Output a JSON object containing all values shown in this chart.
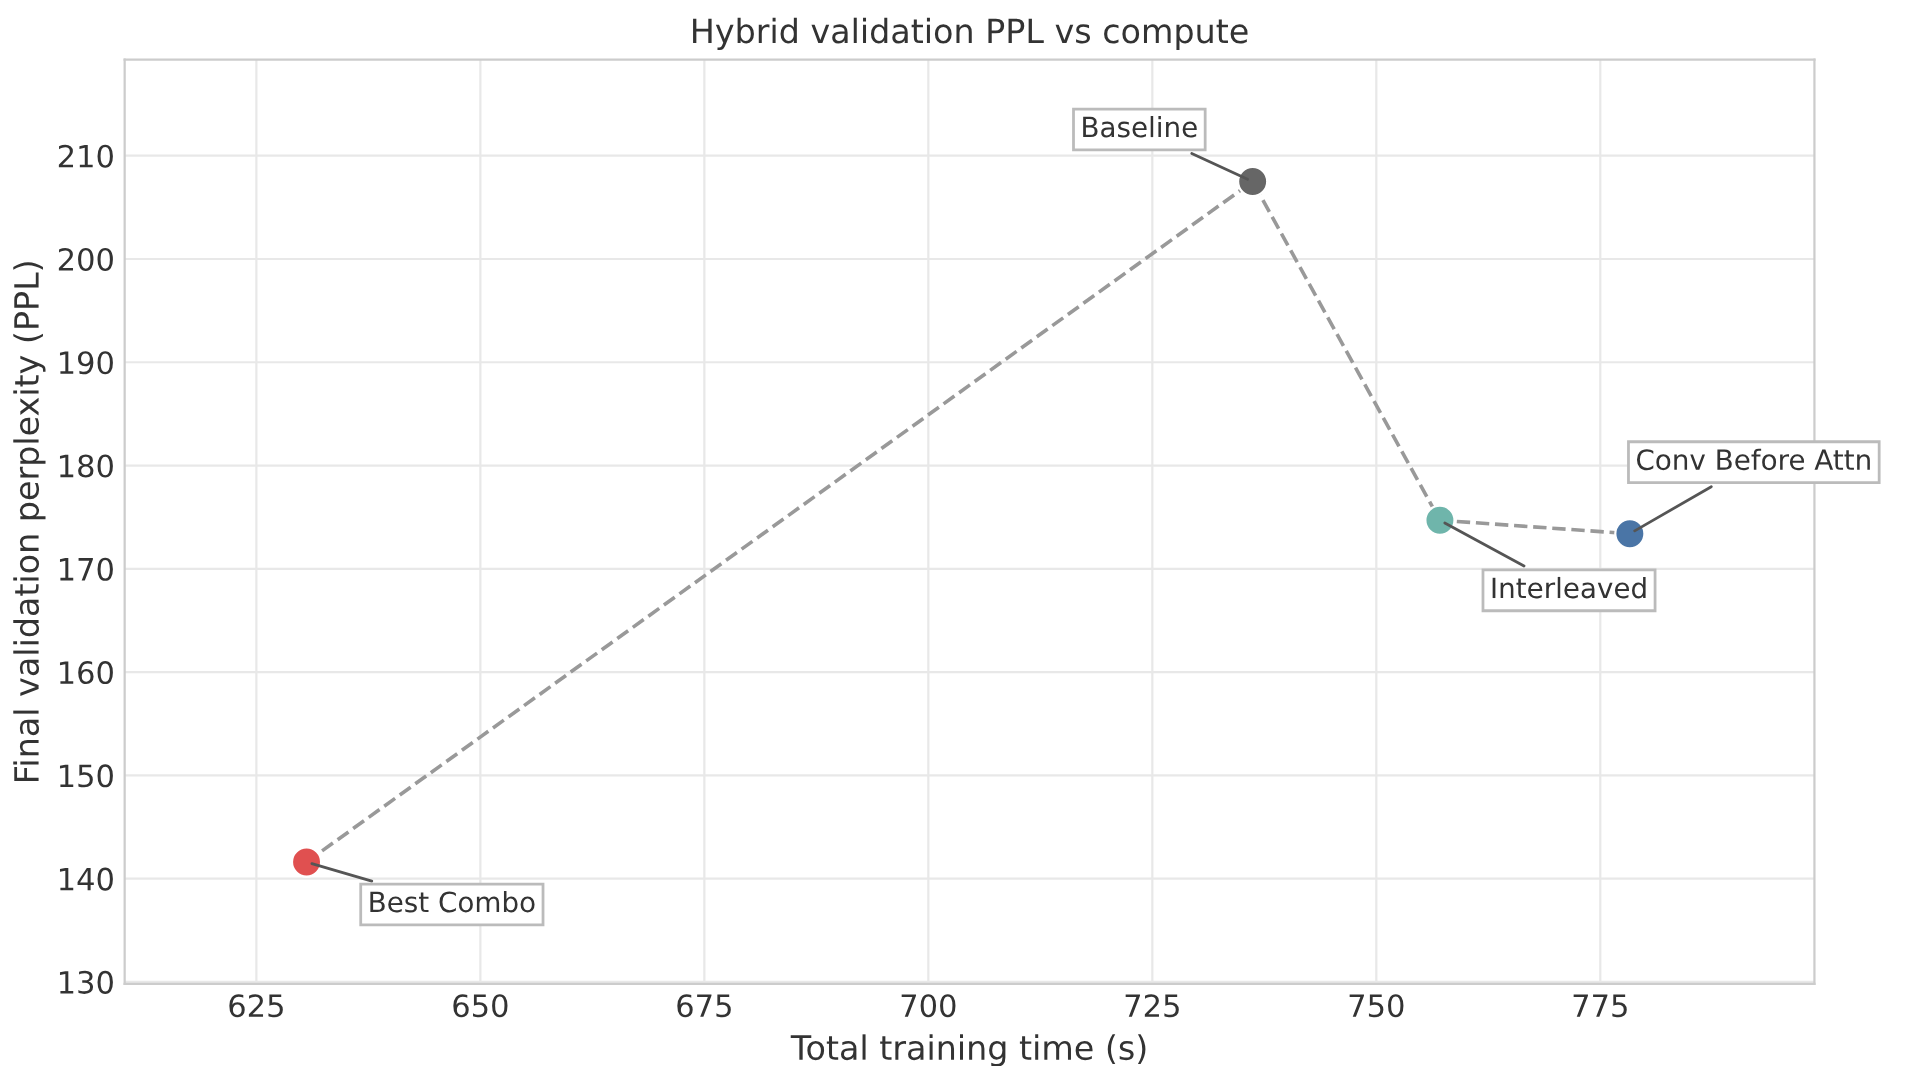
{
  "chart_data": {
    "type": "scatter",
    "title": "Hybrid validation PPL vs compute",
    "xlabel": "Total training time (s)",
    "ylabel": "Final validation perplexity (PPL)",
    "series": [
      {
        "type": "line",
        "color": "#999999",
        "line_style": "dashed",
        "marker": "none",
        "x": [
          630.6,
          736.2,
          757.1,
          778.3
        ],
        "values": [
          141.6,
          207.5,
          174.7,
          173.4
        ]
      },
      {
        "type": "scatter",
        "marker": "circle",
        "x": [
          630.6,
          736.2,
          757.1,
          778.3
        ],
        "values": [
          141.6,
          207.5,
          174.7,
          173.4
        ],
        "colors": [
          "#e05050",
          "#666666",
          "#6fb5ab",
          "#4a75a6"
        ]
      }
    ],
    "annotations": [
      {
        "text": "Best Combo",
        "x": 630.6,
        "y": 141.6
      },
      {
        "text": "Baseline",
        "x": 736.2,
        "y": 207.5
      },
      {
        "text": "Interleaved",
        "x": 757.1,
        "y": 174.7
      },
      {
        "text": "Conv Before Attn",
        "x": 778.3,
        "y": 173.4
      }
    ],
    "xlim": [
      610.3,
      798.9
    ],
    "ylim": [
      129.8,
      219.3
    ],
    "xticks": [
      625,
      650,
      675,
      700,
      725,
      750,
      775
    ],
    "yticks": [
      130,
      140,
      150,
      160,
      170,
      180,
      190,
      200,
      210
    ],
    "grid": true,
    "legend": false
  }
}
